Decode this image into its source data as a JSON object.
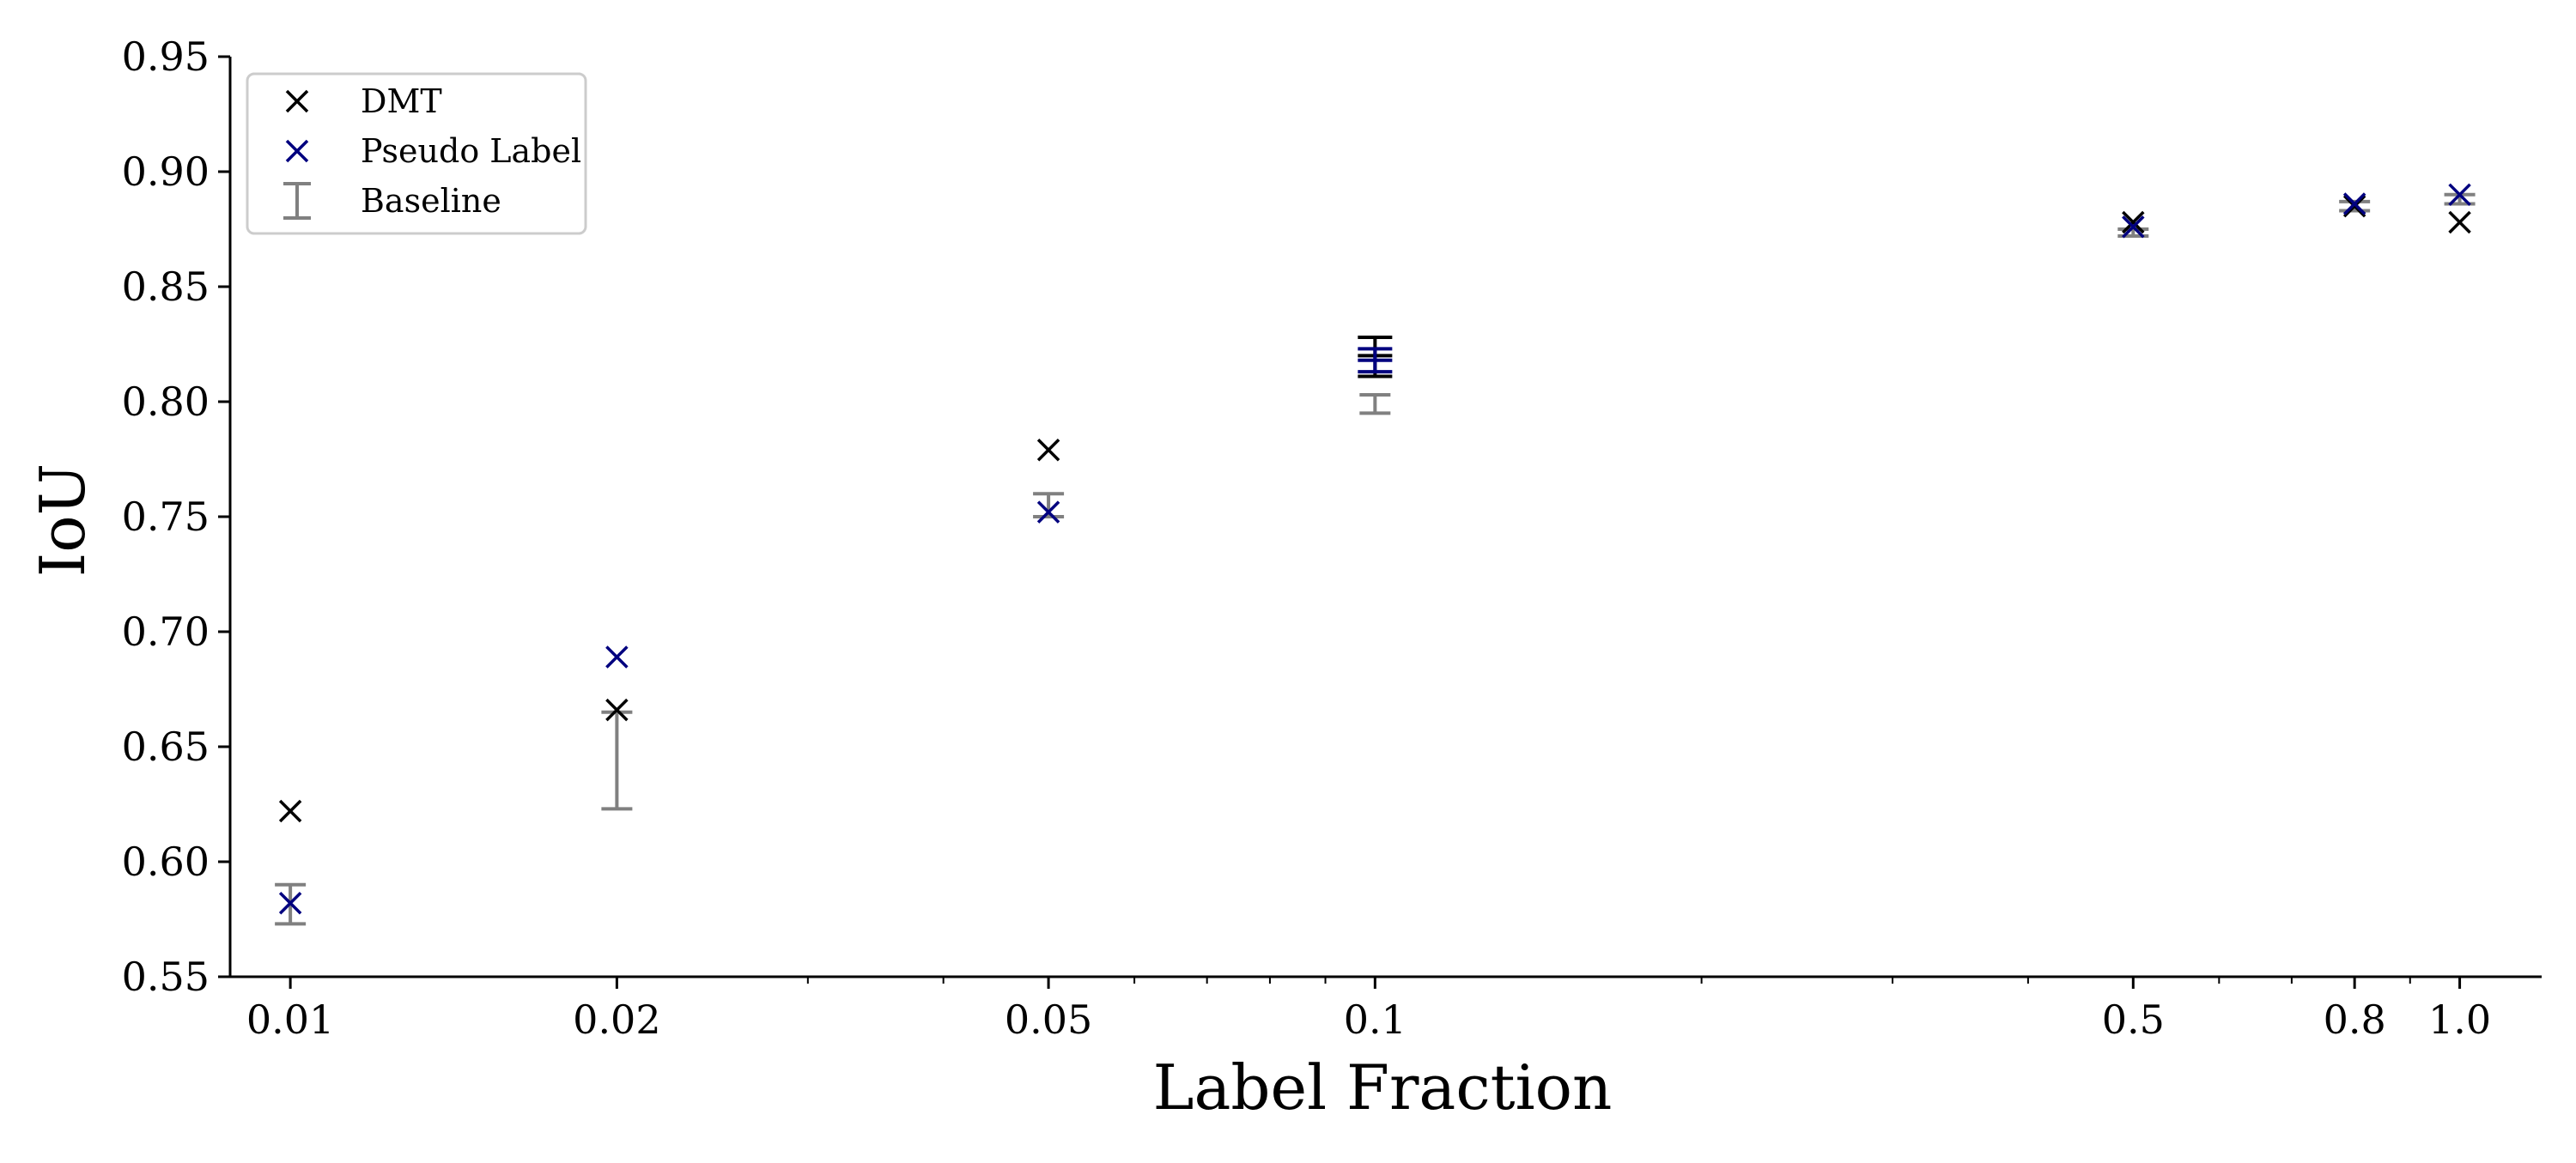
{
  "chart_data": {
    "type": "scatter",
    "title": "",
    "xlabel": "Label Fraction",
    "ylabel": "IoU",
    "xscale": "log",
    "xlim": [
      0.0088,
      1.19
    ],
    "ylim": [
      0.55,
      0.95
    ],
    "x_ticks": [
      {
        "value": 0.01,
        "label": "0.01"
      },
      {
        "value": 0.02,
        "label": "0.02"
      },
      {
        "value": 0.05,
        "label": "0.05"
      },
      {
        "value": 0.1,
        "label": "0.1"
      },
      {
        "value": 0.5,
        "label": "0.5"
      },
      {
        "value": 0.8,
        "label": "0.8"
      },
      {
        "value": 1.0,
        "label": "1.0"
      }
    ],
    "x_minor_ticks": [
      0.03,
      0.04,
      0.06,
      0.07,
      0.08,
      0.09,
      0.2,
      0.3,
      0.4,
      0.6,
      0.7,
      0.9
    ],
    "y_ticks": [
      {
        "value": 0.55,
        "label": "0.55"
      },
      {
        "value": 0.6,
        "label": "0.60"
      },
      {
        "value": 0.65,
        "label": "0.65"
      },
      {
        "value": 0.7,
        "label": "0.70"
      },
      {
        "value": 0.75,
        "label": "0.75"
      },
      {
        "value": 0.8,
        "label": "0.80"
      },
      {
        "value": 0.85,
        "label": "0.85"
      },
      {
        "value": 0.9,
        "label": "0.90"
      },
      {
        "value": 0.95,
        "label": "0.95"
      }
    ],
    "grid": false,
    "legend_position": "top-left",
    "series": [
      {
        "name": "DMT",
        "kind": "marker",
        "marker": "x",
        "color": "#000000",
        "points": [
          {
            "x": 0.01,
            "y": 0.622
          },
          {
            "x": 0.02,
            "y": 0.666
          },
          {
            "x": 0.05,
            "y": 0.779
          },
          {
            "x": 0.1,
            "y": 0.82,
            "err_low": 0.811,
            "err_high": 0.828
          },
          {
            "x": 0.5,
            "y": 0.878
          },
          {
            "x": 0.8,
            "y": 0.885
          },
          {
            "x": 1.0,
            "y": 0.878
          }
        ]
      },
      {
        "name": "Pseudo Label",
        "kind": "marker",
        "marker": "x",
        "color": "#00007f",
        "points": [
          {
            "x": 0.01,
            "y": 0.582
          },
          {
            "x": 0.02,
            "y": 0.689
          },
          {
            "x": 0.05,
            "y": 0.752
          },
          {
            "x": 0.1,
            "y": 0.818,
            "err_low": 0.813,
            "err_high": 0.823
          },
          {
            "x": 0.5,
            "y": 0.876
          },
          {
            "x": 0.8,
            "y": 0.886
          },
          {
            "x": 1.0,
            "y": 0.89
          }
        ]
      },
      {
        "name": "Baseline",
        "kind": "errorbar",
        "color": "#808080",
        "points": [
          {
            "x": 0.01,
            "err_low": 0.573,
            "err_high": 0.59
          },
          {
            "x": 0.02,
            "err_low": 0.623,
            "err_high": 0.665
          },
          {
            "x": 0.05,
            "err_low": 0.75,
            "err_high": 0.76
          },
          {
            "x": 0.1,
            "err_low": 0.795,
            "err_high": 0.803
          },
          {
            "x": 0.5,
            "err_low": 0.872,
            "err_high": 0.875
          },
          {
            "x": 0.8,
            "err_low": 0.883,
            "err_high": 0.887
          },
          {
            "x": 1.0,
            "err_low": 0.886,
            "err_high": 0.89
          }
        ]
      }
    ]
  }
}
